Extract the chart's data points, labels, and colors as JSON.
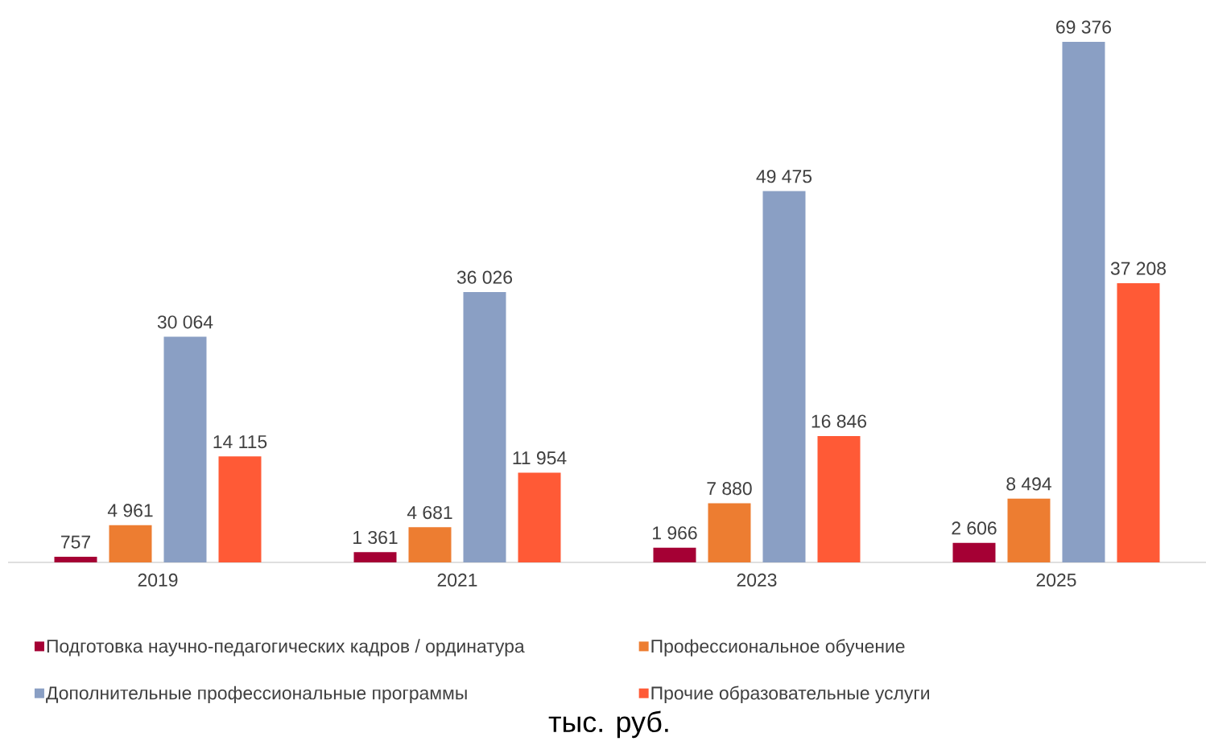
{
  "chart_data": {
    "type": "bar",
    "categories": [
      "2019",
      "2021",
      "2023",
      "2025"
    ],
    "series": [
      {
        "name": "Подготовка научно-педагогических кадров / ординатура",
        "color": "#a50034",
        "values": [
          757,
          1361,
          1966,
          2606
        ],
        "value_labels": [
          "757",
          "1 361",
          "1 966",
          "2 606"
        ]
      },
      {
        "name": "Профессиональное обучение",
        "color": "#ed7d31",
        "values": [
          4961,
          4681,
          7880,
          8494
        ],
        "value_labels": [
          "4 961",
          "4 681",
          "7 880",
          "8 494"
        ]
      },
      {
        "name": "Дополнительные профессиональные программы",
        "color": "#8a9fc4",
        "values": [
          30064,
          36026,
          49475,
          69376
        ],
        "value_labels": [
          "30 064",
          "36 026",
          "49 475",
          "69 376"
        ]
      },
      {
        "name": "Прочие образовательные услуги",
        "color": "#ff5a36",
        "values": [
          14115,
          11954,
          16846,
          37208
        ],
        "value_labels": [
          "14 115",
          "11 954",
          "16 846",
          "37 208"
        ]
      }
    ],
    "legend": "bottom",
    "grid": false,
    "annotations": [
      "тыс. руб."
    ]
  }
}
